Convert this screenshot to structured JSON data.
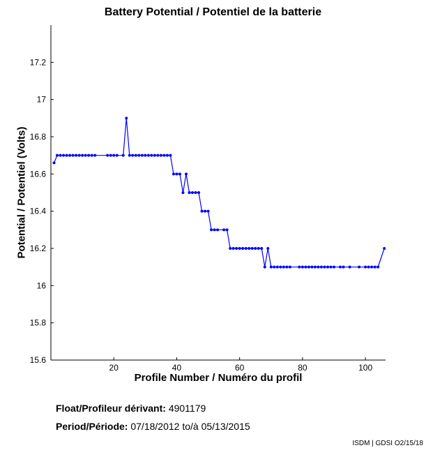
{
  "chart_data": {
    "type": "line",
    "title": "Battery Potential / Potentiel de la batterie",
    "xlabel": "Profile Number / Numéro du profil",
    "ylabel": "Potential / Potentiel (Volts)",
    "xlim": [
      0,
      106.4
    ],
    "ylim": [
      15.6,
      17.4
    ],
    "xticks": [
      20,
      40,
      60,
      80,
      100
    ],
    "yticks": [
      15.6,
      15.8,
      16,
      16.2,
      16.4,
      16.6,
      16.8,
      17,
      17.2
    ],
    "ytick_labels": [
      "15.6",
      "15.8",
      "16",
      "16.2",
      "16.4",
      "16.6",
      "16.8",
      "17",
      "17.2"
    ],
    "grid": false,
    "series": [
      {
        "name": "Battery Potential",
        "color": "#0000ff",
        "x": [
          1,
          2,
          3,
          4,
          5,
          6,
          7,
          8,
          9,
          10,
          11,
          12,
          13,
          14,
          18,
          19,
          20,
          21,
          23,
          24,
          25,
          26,
          27,
          28,
          29,
          30,
          31,
          32,
          33,
          34,
          35,
          36,
          37,
          38,
          39,
          40,
          41,
          42,
          43,
          44,
          45,
          46,
          47,
          48,
          49,
          50,
          51,
          52,
          53,
          55,
          56,
          57,
          58,
          59,
          60,
          61,
          62,
          63,
          64,
          65,
          66,
          67,
          68,
          69,
          70,
          71,
          72,
          73,
          74,
          75,
          76,
          79,
          80,
          81,
          82,
          83,
          84,
          85,
          86,
          87,
          88,
          89,
          90,
          92,
          93,
          95,
          98,
          100,
          101,
          102,
          103,
          104,
          106
        ],
        "y": [
          16.66,
          16.7,
          16.7,
          16.7,
          16.7,
          16.7,
          16.7,
          16.7,
          16.7,
          16.7,
          16.7,
          16.7,
          16.7,
          16.7,
          16.7,
          16.7,
          16.7,
          16.7,
          16.7,
          16.9,
          16.7,
          16.7,
          16.7,
          16.7,
          16.7,
          16.7,
          16.7,
          16.7,
          16.7,
          16.7,
          16.7,
          16.7,
          16.7,
          16.7,
          16.6,
          16.6,
          16.6,
          16.5,
          16.6,
          16.5,
          16.5,
          16.5,
          16.5,
          16.4,
          16.4,
          16.4,
          16.3,
          16.3,
          16.3,
          16.3,
          16.3,
          16.2,
          16.2,
          16.2,
          16.2,
          16.2,
          16.2,
          16.2,
          16.2,
          16.2,
          16.2,
          16.2,
          16.1,
          16.2,
          16.1,
          16.1,
          16.1,
          16.1,
          16.1,
          16.1,
          16.1,
          16.1,
          16.1,
          16.1,
          16.1,
          16.1,
          16.1,
          16.1,
          16.1,
          16.1,
          16.1,
          16.1,
          16.1,
          16.1,
          16.1,
          16.1,
          16.1,
          16.1,
          16.1,
          16.1,
          16.1,
          16.1,
          16.2
        ]
      }
    ]
  },
  "info": {
    "float_label": "Float/Profileur dérivant:",
    "float_value": "4901179",
    "period_label": "Period/Période:",
    "period_start": "07/18/2012",
    "period_sep": "to/à",
    "period_end": "05/13/2015",
    "credit": "ISDM | GDSI O2/15/18"
  }
}
